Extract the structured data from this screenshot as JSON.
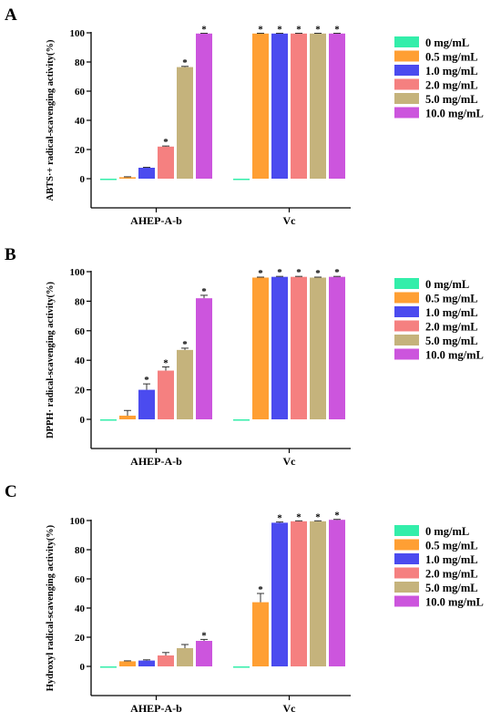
{
  "colors": [
    "#33EEAA",
    "#FF9F33",
    "#4B4BEF",
    "#F58080",
    "#C5B37C",
    "#CC55DD"
  ],
  "chart_data": [
    {
      "type": "bar",
      "panel_label": "A",
      "ylabel": "ABTS·+ radical-scavenging activity(%)",
      "ylim": [
        -10,
        100
      ],
      "yticks": [
        0,
        20,
        40,
        60,
        80,
        100
      ],
      "categories": [
        "AHEP-A-b",
        "Vc"
      ],
      "legend_position": "right",
      "series": [
        {
          "name": "0 mg/mL",
          "values": [
            0,
            0
          ],
          "errors": [
            0,
            0
          ],
          "significant": [
            false,
            false
          ]
        },
        {
          "name": "0.5 mg/mL",
          "values": [
            1,
            99.5
          ],
          "errors": [
            0.3,
            0.2
          ],
          "significant": [
            false,
            true
          ]
        },
        {
          "name": "1.0 mg/mL",
          "values": [
            7.5,
            99.5
          ],
          "errors": [
            0.3,
            0.2
          ],
          "significant": [
            false,
            true
          ]
        },
        {
          "name": "2.0 mg/mL",
          "values": [
            22,
            99.5
          ],
          "errors": [
            0.4,
            0.2
          ],
          "significant": [
            true,
            true
          ]
        },
        {
          "name": "5.0 mg/mL",
          "values": [
            76.5,
            99.5
          ],
          "errors": [
            0.5,
            0.2
          ],
          "significant": [
            true,
            true
          ]
        },
        {
          "name": "10.0 mg/mL",
          "values": [
            99.5,
            99.5
          ],
          "errors": [
            0.2,
            0.2
          ],
          "significant": [
            true,
            true
          ]
        }
      ]
    },
    {
      "type": "bar",
      "panel_label": "B",
      "ylabel": "DPPH· radical-scavenging activity(%)",
      "ylim": [
        -10,
        100
      ],
      "yticks": [
        0,
        20,
        40,
        60,
        80,
        100
      ],
      "categories": [
        "AHEP-A-b",
        "Vc"
      ],
      "legend_position": "right",
      "series": [
        {
          "name": "0 mg/mL",
          "values": [
            0,
            0
          ],
          "errors": [
            0,
            0
          ],
          "significant": [
            false,
            false
          ]
        },
        {
          "name": "0.5 mg/mL",
          "values": [
            2.5,
            96
          ],
          "errors": [
            3.5,
            0.3
          ],
          "significant": [
            false,
            true
          ]
        },
        {
          "name": "1.0 mg/mL",
          "values": [
            20,
            96.5
          ],
          "errors": [
            4,
            0.3
          ],
          "significant": [
            true,
            true
          ]
        },
        {
          "name": "2.0 mg/mL",
          "values": [
            33,
            96.5
          ],
          "errors": [
            2.5,
            0.3
          ],
          "significant": [
            true,
            true
          ]
        },
        {
          "name": "5.0 mg/mL",
          "values": [
            47,
            96
          ],
          "errors": [
            1.2,
            0.3
          ],
          "significant": [
            true,
            true
          ]
        },
        {
          "name": "10.0 mg/mL",
          "values": [
            82,
            96.5
          ],
          "errors": [
            2,
            0.3
          ],
          "significant": [
            true,
            true
          ]
        }
      ]
    },
    {
      "type": "bar",
      "panel_label": "C",
      "ylabel": "Hydroxyl radical-scavenging activity(%)",
      "ylim": [
        -10,
        100
      ],
      "yticks": [
        0,
        20,
        40,
        60,
        80,
        100
      ],
      "categories": [
        "AHEP-A-b",
        "Vc"
      ],
      "legend_position": "right",
      "series": [
        {
          "name": "0 mg/mL",
          "values": [
            0,
            0
          ],
          "errors": [
            0,
            0
          ],
          "significant": [
            false,
            false
          ]
        },
        {
          "name": "0.5 mg/mL",
          "values": [
            3.5,
            44
          ],
          "errors": [
            0.3,
            6
          ],
          "significant": [
            false,
            true
          ]
        },
        {
          "name": "1.0 mg/mL",
          "values": [
            4,
            98.5
          ],
          "errors": [
            0.5,
            0.5
          ],
          "significant": [
            false,
            true
          ]
        },
        {
          "name": "2.0 mg/mL",
          "values": [
            7.5,
            99.5
          ],
          "errors": [
            2,
            0.3
          ],
          "significant": [
            false,
            true
          ]
        },
        {
          "name": "5.0 mg/mL",
          "values": [
            12.5,
            99.5
          ],
          "errors": [
            2.5,
            0.3
          ],
          "significant": [
            false,
            true
          ]
        },
        {
          "name": "10.0 mg/mL",
          "values": [
            17.5,
            100.5
          ],
          "errors": [
            1,
            0.3
          ],
          "significant": [
            true,
            true
          ]
        }
      ]
    }
  ]
}
